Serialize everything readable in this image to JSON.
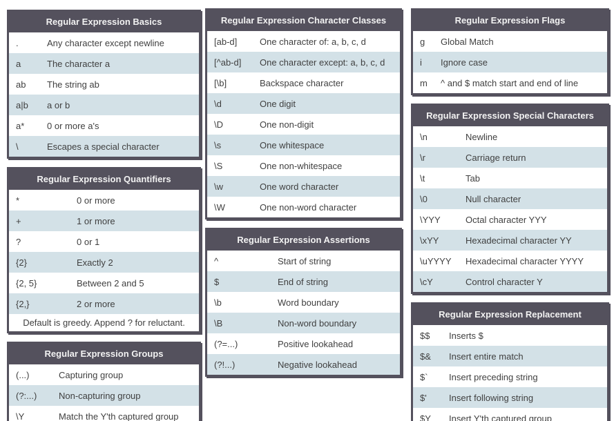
{
  "theme": {
    "frame_color": "#54515d",
    "title_text_color": "#f2f2f2",
    "alt_row_color": "#d3e1e7",
    "text_color": "#3f3f3f"
  },
  "columns": [
    {
      "tables": [
        {
          "name": "regex-basics-table",
          "title": "Regular Expression Basics",
          "rows": [
            {
              "code": ".",
              "desc": "Any character except newline"
            },
            {
              "code": "a",
              "desc": "The character a"
            },
            {
              "code": "ab",
              "desc": "The string ab"
            },
            {
              "code": "a|b",
              "desc": "a or b"
            },
            {
              "code": "a*",
              "desc": "0 or more a's"
            },
            {
              "code": "\\",
              "desc": "Escapes a special character"
            }
          ]
        },
        {
          "name": "regex-quantifiers-table",
          "title": "Regular Expression Quantifiers",
          "rows": [
            {
              "code": "*",
              "desc": "0 or more"
            },
            {
              "code": "+",
              "desc": "1 or more"
            },
            {
              "code": "?",
              "desc": "0 or 1"
            },
            {
              "code": "{2}",
              "desc": "Exactly 2"
            },
            {
              "code": "{2, 5}",
              "desc": "Between 2 and 5"
            },
            {
              "code": "{2,}",
              "desc": "2 or more"
            }
          ],
          "footer": "Default is greedy. Append ? for reluctant."
        },
        {
          "name": "regex-groups-table",
          "title": "Regular Expression Groups",
          "rows": [
            {
              "code": "(...)",
              "desc": "Capturing group"
            },
            {
              "code": "(?:...)",
              "desc": "Non-capturing group"
            },
            {
              "code": "\\Y",
              "desc": "Match the Y'th captured group"
            }
          ]
        }
      ]
    },
    {
      "tables": [
        {
          "name": "regex-character-classes-table",
          "title": "Regular Expression Character Classes",
          "rows": [
            {
              "code": "[ab-d]",
              "desc": "One character of: a, b, c, d"
            },
            {
              "code": "[^ab-d]",
              "desc": "One character except: a, b, c, d"
            },
            {
              "code": "[\\b]",
              "desc": "Backspace character"
            },
            {
              "code": "\\d",
              "desc": "One digit"
            },
            {
              "code": "\\D",
              "desc": "One non-digit"
            },
            {
              "code": "\\s",
              "desc": "One whitespace"
            },
            {
              "code": "\\S",
              "desc": "One non-whitespace"
            },
            {
              "code": "\\w",
              "desc": "One word character"
            },
            {
              "code": "\\W",
              "desc": "One non-word character"
            }
          ]
        },
        {
          "name": "regex-assertions-table",
          "title": "Regular Expression Assertions",
          "rows": [
            {
              "code": "^",
              "desc": "Start of string"
            },
            {
              "code": "$",
              "desc": "End of string"
            },
            {
              "code": "\\b",
              "desc": "Word boundary"
            },
            {
              "code": "\\B",
              "desc": "Non-word boundary"
            },
            {
              "code": "(?=...)",
              "desc": "Positive lookahead"
            },
            {
              "code": "(?!...)",
              "desc": "Negative lookahead"
            }
          ]
        }
      ]
    },
    {
      "tables": [
        {
          "name": "regex-flags-table",
          "title": "Regular Expression Flags",
          "rows": [
            {
              "code": "g",
              "desc": "Global Match"
            },
            {
              "code": "i",
              "desc": "Ignore case"
            },
            {
              "code": "m",
              "desc": "^ and $ match start and end of line"
            }
          ]
        },
        {
          "name": "regex-special-characters-table",
          "title": "Regular Expression Special Characters",
          "rows": [
            {
              "code": "\\n",
              "desc": "Newline"
            },
            {
              "code": "\\r",
              "desc": "Carriage return"
            },
            {
              "code": "\\t",
              "desc": "Tab"
            },
            {
              "code": "\\0",
              "desc": "Null character"
            },
            {
              "code": "\\YYY",
              "desc": "Octal character YYY"
            },
            {
              "code": "\\xYY",
              "desc": "Hexadecimal character YY"
            },
            {
              "code": "\\uYYYY",
              "desc": "Hexadecimal character YYYY"
            },
            {
              "code": "\\cY",
              "desc": "Control character Y"
            }
          ]
        },
        {
          "name": "regex-replacement-table",
          "title": "Regular Expression Replacement",
          "rows": [
            {
              "code": "$$",
              "desc": "Inserts $"
            },
            {
              "code": "$&",
              "desc": "Insert entire match"
            },
            {
              "code": "$`",
              "desc": "Insert preceding string"
            },
            {
              "code": "$'",
              "desc": "Insert following string"
            },
            {
              "code": "$Y",
              "desc": "Insert Y'th captured group"
            }
          ]
        }
      ]
    }
  ]
}
